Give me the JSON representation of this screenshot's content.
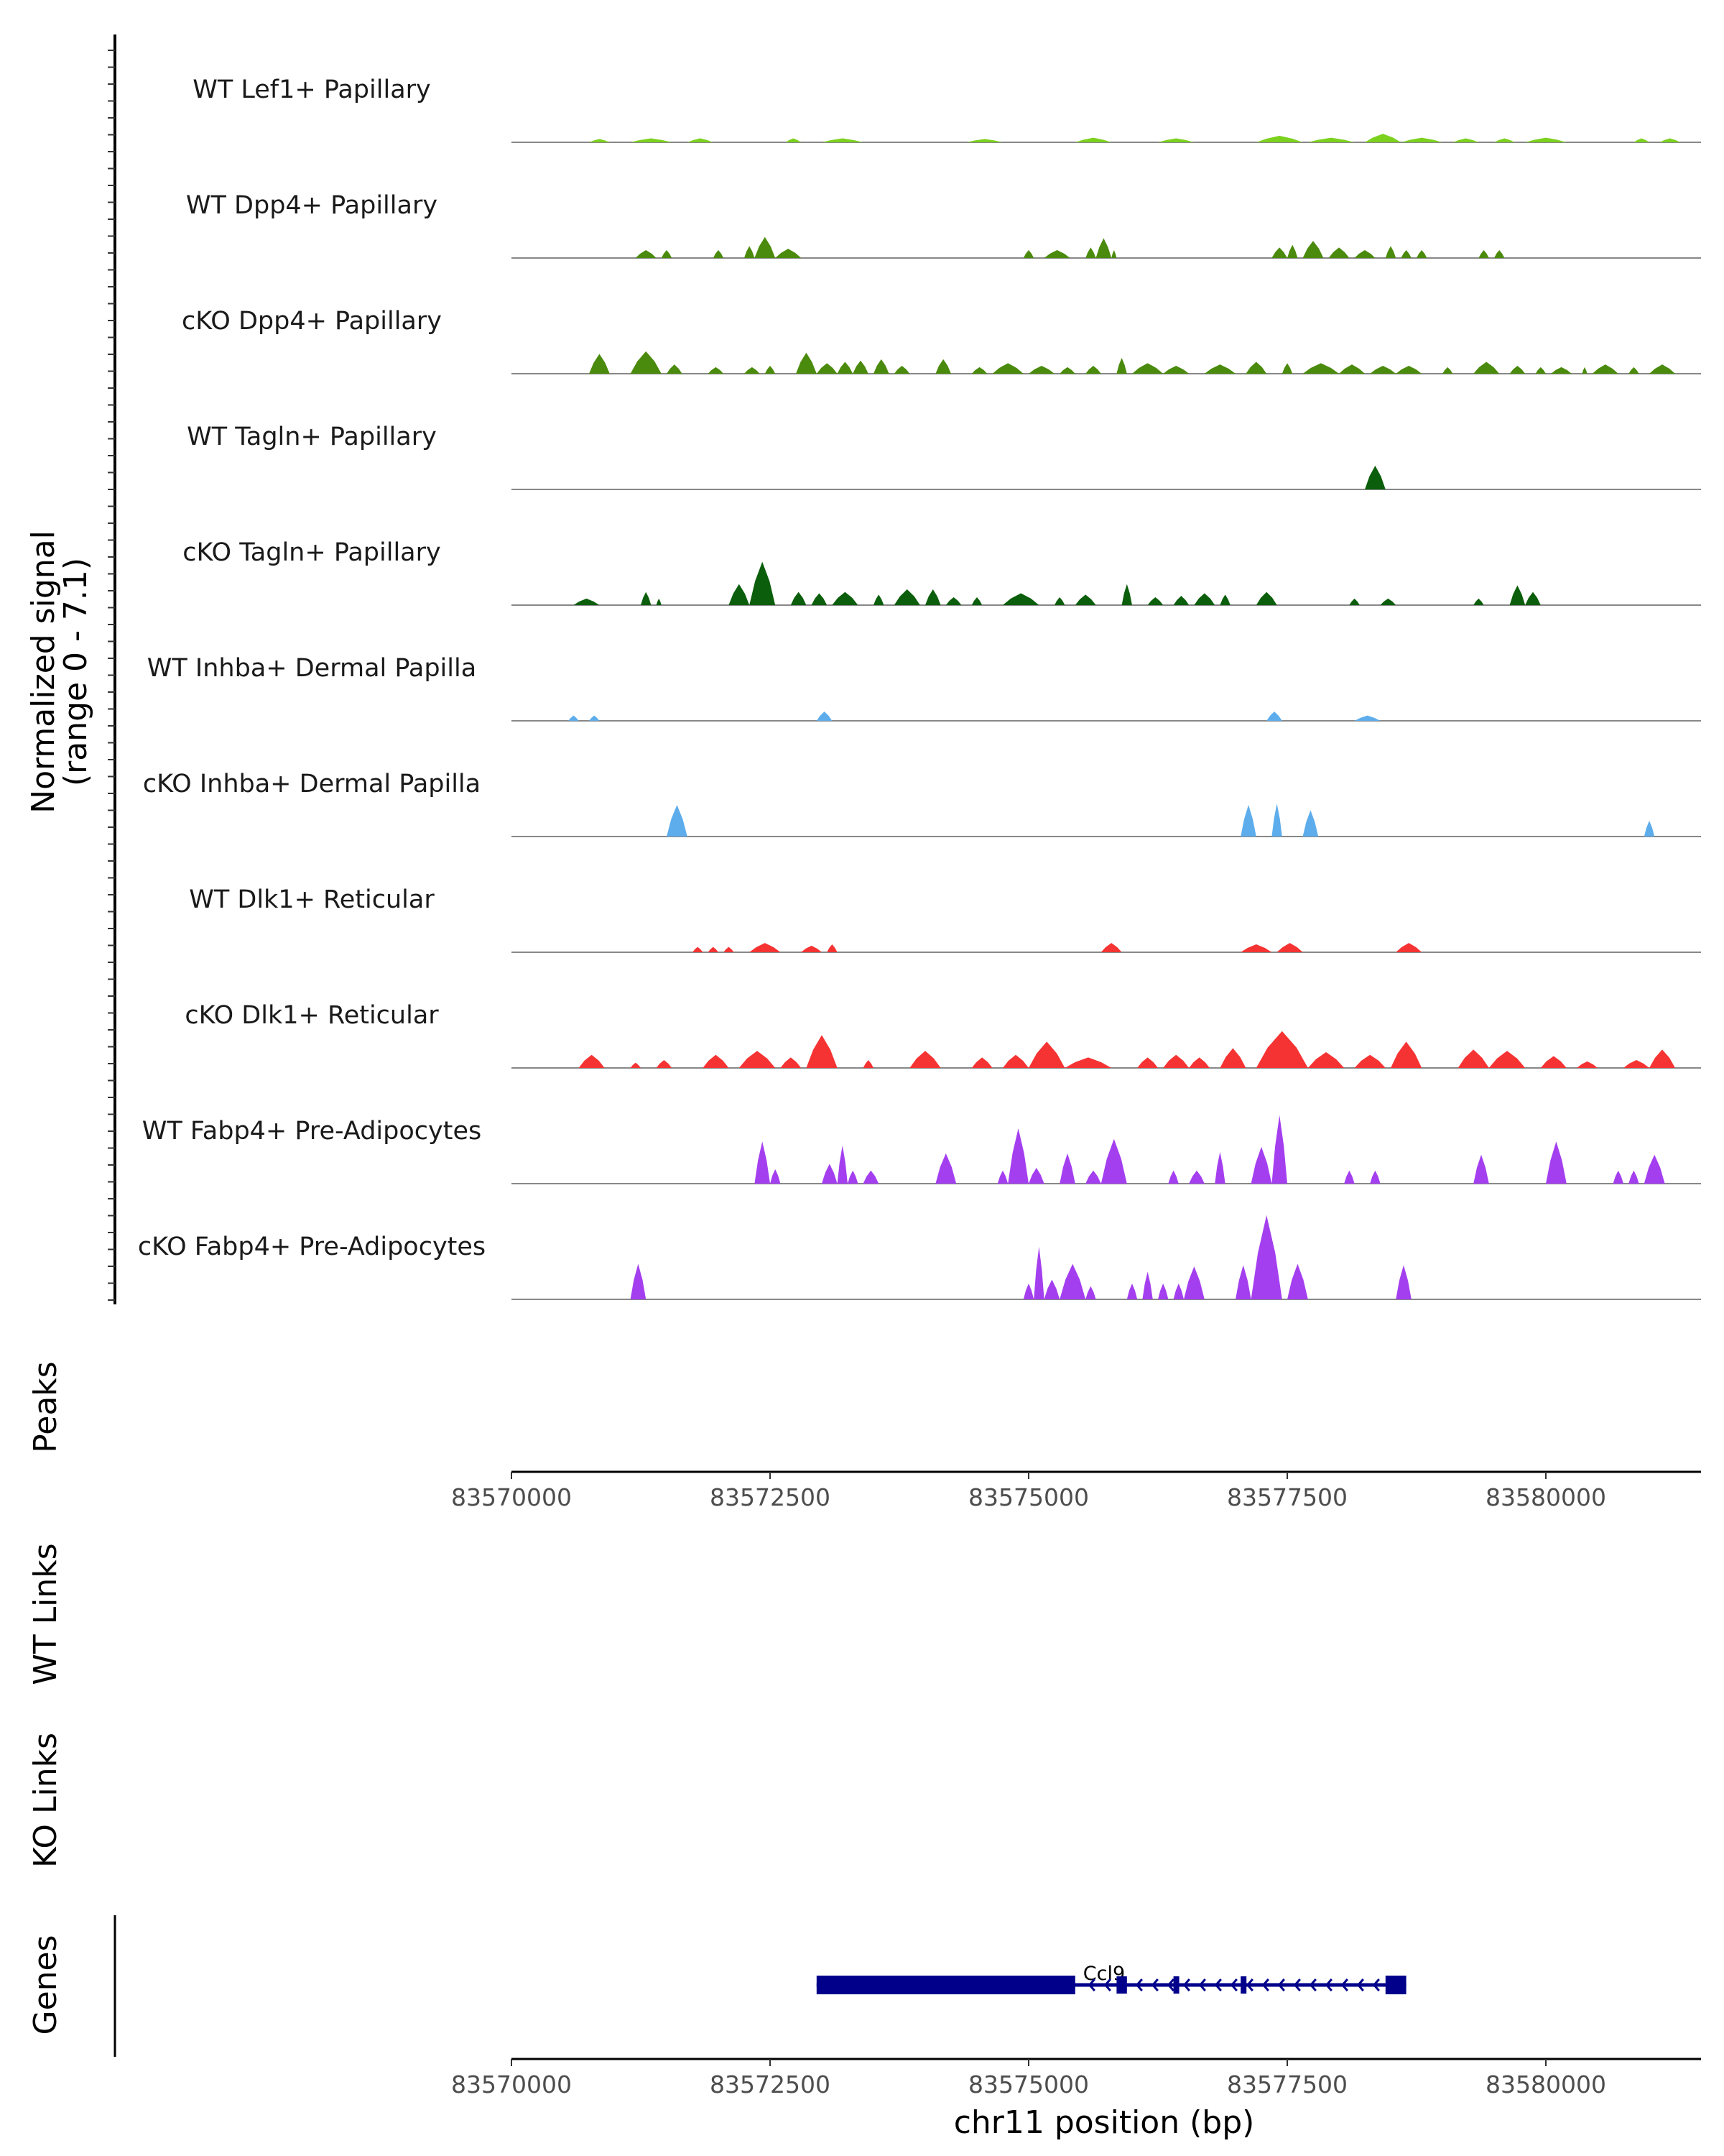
{
  "chart_data": {
    "type": "area",
    "xlabel": "chr11 position (bp)",
    "xlim": [
      83570000,
      83581500
    ],
    "x_ticks": [
      {
        "value": 83570000,
        "label": "83570000"
      },
      {
        "value": 83572500,
        "label": "83572500"
      },
      {
        "value": 83575000,
        "label": "83575000"
      },
      {
        "value": 83577500,
        "label": "83577500"
      },
      {
        "value": 83580000,
        "label": "83580000"
      }
    ],
    "ylabel_line1": "Normalized signal",
    "ylabel_line2": "(range 0 - 7.1)",
    "ylim": [
      0,
      7.1
    ],
    "tracks": [
      {
        "name": "WT Lef1+ Papillary",
        "color": "#7CD11F",
        "regions": [
          [
            83570750,
            83570950,
            0.25
          ],
          [
            83571150,
            83571550,
            0.3
          ],
          [
            83571700,
            83571950,
            0.3
          ],
          [
            83572650,
            83572800,
            0.3
          ],
          [
            83573000,
            83573400,
            0.3
          ],
          [
            83574400,
            83574750,
            0.25
          ],
          [
            83575450,
            83575800,
            0.35
          ],
          [
            83576250,
            83576600,
            0.3
          ],
          [
            83577200,
            83577650,
            0.5
          ],
          [
            83577700,
            83578150,
            0.35
          ],
          [
            83578250,
            83578600,
            0.65
          ],
          [
            83578600,
            83579000,
            0.35
          ],
          [
            83579100,
            83579350,
            0.3
          ],
          [
            83579500,
            83579700,
            0.3
          ],
          [
            83579800,
            83580200,
            0.35
          ],
          [
            83580850,
            83581000,
            0.3
          ],
          [
            83581100,
            83581300,
            0.3
          ]
        ]
      },
      {
        "name": "WT Dpp4+ Papillary",
        "color": "#4A8A0C",
        "regions": [
          [
            83571200,
            83571400,
            0.6
          ],
          [
            83571450,
            83571550,
            0.6
          ],
          [
            83571950,
            83572050,
            0.6
          ],
          [
            83572250,
            83572350,
            0.9
          ],
          [
            83572350,
            83572550,
            1.6
          ],
          [
            83572550,
            83572800,
            0.7
          ],
          [
            83574950,
            83575050,
            0.6
          ],
          [
            83575150,
            83575400,
            0.6
          ],
          [
            83575550,
            83575650,
            0.8
          ],
          [
            83575650,
            83575800,
            1.5
          ],
          [
            83575800,
            83575850,
            0.6
          ],
          [
            83577350,
            83577500,
            0.8
          ],
          [
            83577500,
            83577600,
            1.0
          ],
          [
            83577650,
            83577850,
            1.3
          ],
          [
            83577900,
            83578100,
            0.8
          ],
          [
            83578150,
            83578350,
            0.6
          ],
          [
            83578450,
            83578550,
            0.9
          ],
          [
            83578600,
            83578700,
            0.6
          ],
          [
            83578750,
            83578850,
            0.6
          ],
          [
            83579350,
            83579450,
            0.6
          ],
          [
            83579500,
            83579600,
            0.6
          ]
        ]
      },
      {
        "name": "cKO Dpp4+ Papillary",
        "color": "#4A8A0C",
        "regions": [
          [
            83570750,
            83570950,
            1.5
          ],
          [
            83571150,
            83571450,
            1.7
          ],
          [
            83571500,
            83571650,
            0.7
          ],
          [
            83571900,
            83572050,
            0.5
          ],
          [
            83572250,
            83572400,
            0.5
          ],
          [
            83572450,
            83572550,
            0.6
          ],
          [
            83572750,
            83572950,
            1.6
          ],
          [
            83572950,
            83573150,
            0.8
          ],
          [
            83573150,
            83573300,
            0.9
          ],
          [
            83573300,
            83573450,
            1.0
          ],
          [
            83573500,
            83573650,
            1.1
          ],
          [
            83573700,
            83573850,
            0.6
          ],
          [
            83574100,
            83574250,
            1.1
          ],
          [
            83574450,
            83574600,
            0.5
          ],
          [
            83574650,
            83574950,
            0.8
          ],
          [
            83575000,
            83575250,
            0.6
          ],
          [
            83575300,
            83575450,
            0.5
          ],
          [
            83575550,
            83575700,
            0.6
          ],
          [
            83575850,
            83575950,
            1.2
          ],
          [
            83576000,
            83576300,
            0.8
          ],
          [
            83576300,
            83576550,
            0.6
          ],
          [
            83576700,
            83577000,
            0.7
          ],
          [
            83577100,
            83577300,
            0.9
          ],
          [
            83577450,
            83577550,
            0.8
          ],
          [
            83577650,
            83578000,
            0.8
          ],
          [
            83578000,
            83578250,
            0.7
          ],
          [
            83578300,
            83578550,
            0.6
          ],
          [
            83578550,
            83578800,
            0.6
          ],
          [
            83579000,
            83579100,
            0.5
          ],
          [
            83579300,
            83579550,
            0.9
          ],
          [
            83579650,
            83579800,
            0.6
          ],
          [
            83579900,
            83580000,
            0.5
          ],
          [
            83580050,
            83580250,
            0.5
          ],
          [
            83580350,
            83580400,
            0.5
          ],
          [
            83580450,
            83580700,
            0.7
          ],
          [
            83580800,
            83580900,
            0.5
          ],
          [
            83581000,
            83581250,
            0.7
          ]
        ]
      },
      {
        "name": "WT Tagln+ Papillary",
        "color": "#0B5E0B",
        "regions": [
          [
            83578250,
            83578450,
            1.8
          ]
        ]
      },
      {
        "name": "cKO Tagln+ Papillary",
        "color": "#0B5E0B",
        "regions": [
          [
            83570600,
            83570850,
            0.5
          ],
          [
            83571250,
            83571350,
            1.0
          ],
          [
            83571400,
            83571450,
            0.5
          ],
          [
            83572100,
            83572300,
            1.6
          ],
          [
            83572300,
            83572550,
            3.3
          ],
          [
            83572700,
            83572850,
            1.0
          ],
          [
            83572900,
            83573050,
            0.9
          ],
          [
            83573100,
            83573350,
            1.0
          ],
          [
            83573500,
            83573600,
            0.8
          ],
          [
            83573700,
            83573950,
            1.2
          ],
          [
            83574000,
            83574150,
            1.2
          ],
          [
            83574200,
            83574350,
            0.6
          ],
          [
            83574450,
            83574550,
            0.6
          ],
          [
            83574750,
            83575100,
            0.9
          ],
          [
            83575250,
            83575350,
            0.6
          ],
          [
            83575450,
            83575650,
            0.8
          ],
          [
            83575900,
            83576000,
            1.6
          ],
          [
            83576150,
            83576300,
            0.6
          ],
          [
            83576400,
            83576550,
            0.7
          ],
          [
            83576600,
            83576800,
            0.9
          ],
          [
            83576850,
            83576950,
            0.8
          ],
          [
            83577200,
            83577400,
            1.0
          ],
          [
            83578100,
            83578200,
            0.5
          ],
          [
            83578400,
            83578550,
            0.5
          ],
          [
            83579300,
            83579400,
            0.5
          ],
          [
            83579650,
            83579800,
            1.5
          ],
          [
            83579800,
            83579950,
            1.0
          ]
        ]
      },
      {
        "name": "WT Inhba+ Dermal Papilla",
        "color": "#5DADEC",
        "regions": [
          [
            83570550,
            83570650,
            0.4
          ],
          [
            83570750,
            83570850,
            0.4
          ],
          [
            83572950,
            83573100,
            0.7
          ],
          [
            83577300,
            83577450,
            0.7
          ],
          [
            83578150,
            83578400,
            0.4
          ]
        ]
      },
      {
        "name": "cKO Inhba+ Dermal Papilla",
        "color": "#5DADEC",
        "regions": [
          [
            83571500,
            83571700,
            2.4
          ],
          [
            83577050,
            83577200,
            2.4
          ],
          [
            83577350,
            83577450,
            2.5
          ],
          [
            83577650,
            83577800,
            2.0
          ],
          [
            83580950,
            83581050,
            1.2
          ]
        ]
      },
      {
        "name": "WT Dlk1+ Reticular",
        "color": "#F53333",
        "regions": [
          [
            83571750,
            83571850,
            0.4
          ],
          [
            83571900,
            83572000,
            0.4
          ],
          [
            83572050,
            83572150,
            0.4
          ],
          [
            83572300,
            83572600,
            0.7
          ],
          [
            83572800,
            83573000,
            0.5
          ],
          [
            83573050,
            83573150,
            0.6
          ],
          [
            83575700,
            83575900,
            0.7
          ],
          [
            83577050,
            83577350,
            0.6
          ],
          [
            83577400,
            83577650,
            0.7
          ],
          [
            83578550,
            83578800,
            0.7
          ]
        ]
      },
      {
        "name": "cKO Dlk1+ Reticular",
        "color": "#F53333",
        "regions": [
          [
            83570650,
            83570900,
            1.0
          ],
          [
            83571150,
            83571250,
            0.4
          ],
          [
            83571400,
            83571550,
            0.6
          ],
          [
            83571850,
            83572100,
            1.0
          ],
          [
            83572200,
            83572550,
            1.3
          ],
          [
            83572600,
            83572800,
            0.8
          ],
          [
            83572850,
            83573150,
            2.5
          ],
          [
            83573400,
            83573500,
            0.6
          ],
          [
            83573850,
            83574150,
            1.3
          ],
          [
            83574450,
            83574650,
            0.8
          ],
          [
            83574750,
            83575000,
            1.0
          ],
          [
            83575000,
            83575350,
            2.0
          ],
          [
            83575350,
            83575800,
            0.8
          ],
          [
            83576050,
            83576250,
            0.8
          ],
          [
            83576300,
            83576550,
            1.0
          ],
          [
            83576550,
            83576750,
            0.8
          ],
          [
            83576850,
            83577100,
            1.5
          ],
          [
            83577200,
            83577700,
            2.8
          ],
          [
            83577700,
            83578050,
            1.2
          ],
          [
            83578150,
            83578450,
            1.0
          ],
          [
            83578500,
            83578800,
            2.0
          ],
          [
            83579150,
            83579450,
            1.4
          ],
          [
            83579450,
            83579800,
            1.3
          ],
          [
            83579950,
            83580200,
            0.9
          ],
          [
            83580300,
            83580500,
            0.5
          ],
          [
            83580750,
            83581000,
            0.6
          ],
          [
            83581000,
            83581250,
            1.4
          ]
        ]
      },
      {
        "name": "WT Fabp4+ Pre-Adipocytes",
        "color": "#A43FEF",
        "regions": [
          [
            83572350,
            83572500,
            3.2
          ],
          [
            83572500,
            83572600,
            1.1
          ],
          [
            83573000,
            83573150,
            1.5
          ],
          [
            83573150,
            83573250,
            2.9
          ],
          [
            83573250,
            83573350,
            1.0
          ],
          [
            83573400,
            83573550,
            1.0
          ],
          [
            83574100,
            83574300,
            2.3
          ],
          [
            83574700,
            83574800,
            1.0
          ],
          [
            83574800,
            83575000,
            4.2
          ],
          [
            83575000,
            83575150,
            1.2
          ],
          [
            83575300,
            83575450,
            2.3
          ],
          [
            83575550,
            83575700,
            1.0
          ],
          [
            83575700,
            83575950,
            3.4
          ],
          [
            83576350,
            83576450,
            1.0
          ],
          [
            83576550,
            83576700,
            1.0
          ],
          [
            83576800,
            83576900,
            2.4
          ],
          [
            83577150,
            83577350,
            2.8
          ],
          [
            83577350,
            83577500,
            5.2
          ],
          [
            83578050,
            83578150,
            1.0
          ],
          [
            83578300,
            83578400,
            1.0
          ],
          [
            83579300,
            83579450,
            2.2
          ],
          [
            83580000,
            83580200,
            3.2
          ],
          [
            83580650,
            83580750,
            1.0
          ],
          [
            83580800,
            83580900,
            1.0
          ],
          [
            83580950,
            83581150,
            2.2
          ]
        ]
      },
      {
        "name": "cKO Fabp4+ Pre-Adipocytes",
        "color": "#A43FEF",
        "regions": [
          [
            83571150,
            83571300,
            2.7
          ],
          [
            83574950,
            83575050,
            1.2
          ],
          [
            83575050,
            83575150,
            4.0
          ],
          [
            83575150,
            83575300,
            1.5
          ],
          [
            83575300,
            83575550,
            2.7
          ],
          [
            83575550,
            83575650,
            1.0
          ],
          [
            83575950,
            83576050,
            1.2
          ],
          [
            83576100,
            83576200,
            2.1
          ],
          [
            83576250,
            83576350,
            1.2
          ],
          [
            83576400,
            83576500,
            1.2
          ],
          [
            83576500,
            83576700,
            2.5
          ],
          [
            83577000,
            83577150,
            2.6
          ],
          [
            83577150,
            83577450,
            6.4
          ],
          [
            83577500,
            83577700,
            2.7
          ],
          [
            83578550,
            83578700,
            2.6
          ]
        ]
      }
    ],
    "peaks_label": "Peaks",
    "wt_links_label": "WT Links",
    "ko_links_label": "KO Links",
    "genes_label": "Genes",
    "gene": {
      "name": "Ccl9",
      "color": "#00008B",
      "start": 83572950,
      "end": 83578650,
      "strand": "-",
      "exons": [
        [
          83572950,
          83575450
        ],
        [
          83575850,
          83575950
        ],
        [
          83576400,
          83576450
        ],
        [
          83577050,
          83577100
        ],
        [
          83578450,
          83578650
        ]
      ]
    }
  }
}
